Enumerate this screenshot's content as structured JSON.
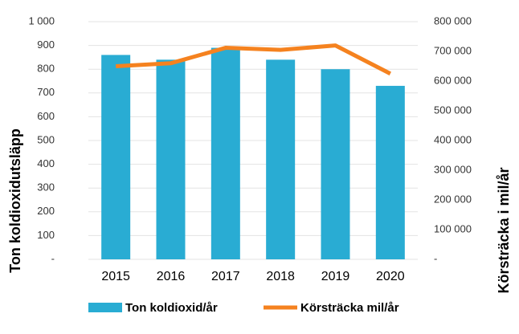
{
  "chart_data": {
    "type": "bar_line",
    "categories": [
      "2015",
      "2016",
      "2017",
      "2018",
      "2019",
      "2020"
    ],
    "series": [
      {
        "name": "Ton koldioxid/år",
        "color": "#29acd3",
        "type": "bar",
        "values": [
          860,
          840,
          890,
          840,
          800,
          730
        ]
      },
      {
        "name": "Körsträcka mil/år",
        "color": "#f5821f",
        "type": "line",
        "axis": "y2",
        "values": [
          650000,
          660000,
          712000,
          705000,
          720000,
          625000
        ]
      }
    ],
    "ylabel": "Ton koldioxidutsläpp",
    "y2label": "Körsträcka i mil/år",
    "ylim": [
      0,
      1000
    ],
    "yticks": [
      {
        "value": 0,
        "label": "-"
      },
      100,
      200,
      300,
      400,
      500,
      600,
      700,
      800,
      900,
      {
        "value": 1000,
        "label": "1 000"
      }
    ],
    "y2lim": [
      0,
      800000
    ],
    "y2ticks": [
      {
        "value": 0,
        "label": "-"
      },
      {
        "value": 100000,
        "label": "100 000"
      },
      {
        "value": 200000,
        "label": "200 000"
      },
      {
        "value": 300000,
        "label": "300 000"
      },
      {
        "value": 400000,
        "label": "400 000"
      },
      {
        "value": 500000,
        "label": "500 000"
      },
      {
        "value": 600000,
        "label": "600 000"
      },
      {
        "value": 700000,
        "label": "700 000"
      },
      {
        "value": 800000,
        "label": "800 000"
      }
    ],
    "grid": true,
    "legend": "bottom"
  }
}
